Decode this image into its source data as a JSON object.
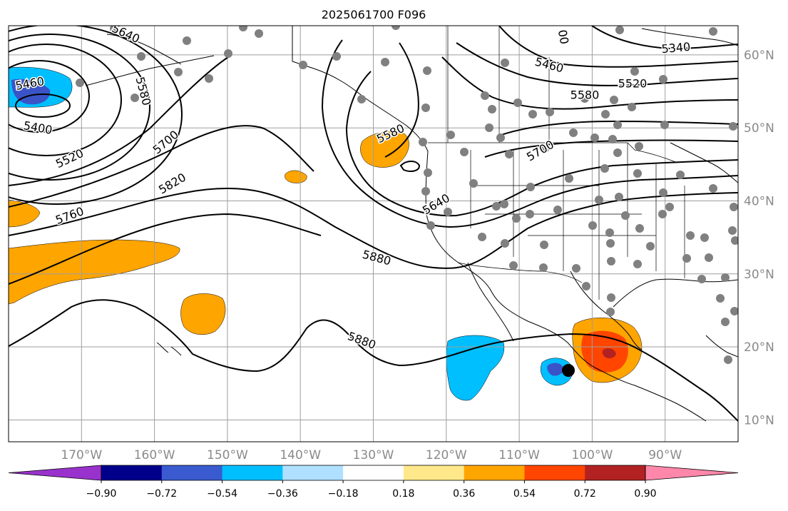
{
  "title": "2025061700 F096",
  "map": {
    "projection": "PlateCarree",
    "lon_range": [
      -180,
      -80
    ],
    "lat_range": [
      7,
      64
    ],
    "lon_ticks": [
      "170°W",
      "160°W",
      "150°W",
      "140°W",
      "130°W",
      "120°W",
      "110°W",
      "100°W",
      "90°W"
    ],
    "lat_ticks": [
      "60°N",
      "50°N",
      "40°N",
      "30°N",
      "20°N",
      "10°N"
    ],
    "contour_labels": [
      "5640",
      "5460",
      "5580",
      "5400",
      "5520",
      "5700",
      "5820",
      "5760",
      "5580",
      "5640",
      "5700",
      "5460",
      "5340",
      "5520",
      "5580",
      "5880",
      "5880",
      "00"
    ],
    "shading_colors": {
      "blue_dark": "#3a54c8",
      "blue": "#00bfff",
      "orange": "#ffa500",
      "red": "#ff4500",
      "dark_red": "#b22222"
    },
    "marker_color": "#000000",
    "station_color": "#808080"
  },
  "colorbar": {
    "colors": [
      "#9932cc",
      "#00008b",
      "#3a5bcf",
      "#00bfff",
      "#b0e0ff",
      "#ffffff",
      "#ffe88a",
      "#ffa500",
      "#ff4500",
      "#b22222",
      "#ff88aa"
    ],
    "ticks": [
      "−0.90",
      "−0.72",
      "−0.54",
      "−0.36",
      "−0.18",
      "0.18",
      "0.36",
      "0.54",
      "0.72",
      "0.90"
    ]
  }
}
